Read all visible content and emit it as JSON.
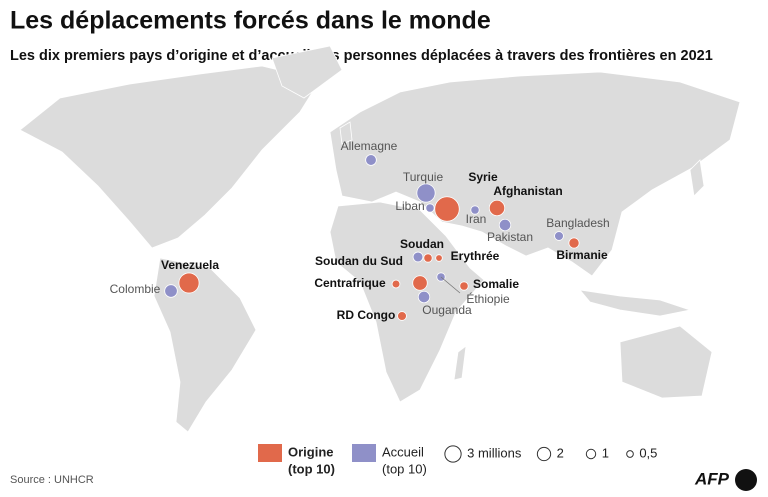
{
  "chart_data": {
    "type": "bubble-map",
    "title": "Les déplacements forcés dans le monde",
    "subtitle": "Les dix premiers pays d’origine et d’accueil des personnes déplacées à travers des frontières en 2021",
    "series": [
      {
        "name": "Origine",
        "name_note": "(top 10)",
        "color": "#e1694b",
        "categories": [
          "Syrie",
          "Venezuela",
          "Afghanistan",
          "Soudan du Sud",
          "Birmanie",
          "RD Congo",
          "Soudan",
          "Centrafrique",
          "Erythrée",
          "Somalie"
        ],
        "values": [
          6.8,
          4.6,
          2.7,
          2.4,
          1.2,
          0.9,
          0.8,
          0.7,
          0.5,
          0.8
        ]
      },
      {
        "name": "Accueil",
        "name_note": "(top 10)",
        "color": "#8f90c8",
        "categories": [
          "Turquie",
          "Colombie",
          "Ouganda",
          "Pakistan",
          "Allemagne",
          null,
          "Bangladesh",
          "Liban",
          "Éthiopie",
          "Iran"
        ],
        "values": [
          3.8,
          1.8,
          1.5,
          1.5,
          1.3,
          1.1,
          0.9,
          0.8,
          0.8,
          0.8
        ]
      }
    ],
    "size_legend": [
      {
        "value": 3,
        "label": "3 millions"
      },
      2,
      1,
      {
        "value": 0.5,
        "label": "0,5"
      }
    ],
    "source": "Source : UNHCR",
    "logo": "AFP"
  }
}
